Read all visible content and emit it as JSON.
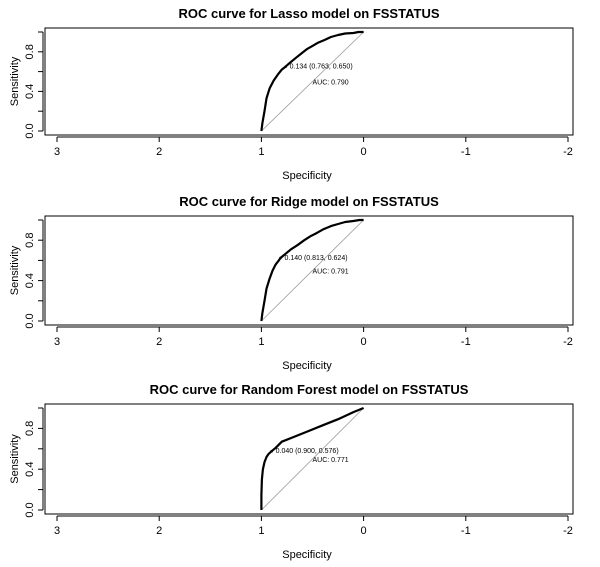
{
  "chart_data": [
    {
      "type": "line",
      "title": "ROC curve for Lasso model on FSSTATUS",
      "xlabel": "Specificity",
      "ylabel": "Sensitivity",
      "xlim": [
        3,
        -2
      ],
      "ylim": [
        0,
        1
      ],
      "x_ticks": [
        3,
        2,
        1,
        0,
        -1,
        -2
      ],
      "x_tick_labels": [
        "3",
        "2",
        "1",
        "0",
        "-1",
        "-2"
      ],
      "y_ticks": [
        0.0,
        0.4,
        0.8
      ],
      "y_tick_labels": [
        "0.0",
        "0.4",
        "0.8"
      ],
      "series": [
        {
          "x": [
            1.0,
            0.99,
            0.97,
            0.95,
            0.92,
            0.88,
            0.84,
            0.8,
            0.763,
            0.72,
            0.66,
            0.6,
            0.55,
            0.5,
            0.45,
            0.38,
            0.32,
            0.25,
            0.18,
            0.1,
            0.05,
            0.0
          ],
          "y": [
            0.0,
            0.08,
            0.2,
            0.33,
            0.43,
            0.51,
            0.57,
            0.62,
            0.65,
            0.69,
            0.74,
            0.79,
            0.83,
            0.86,
            0.89,
            0.92,
            0.95,
            0.97,
            0.985,
            0.99,
            1.0,
            1.0
          ]
        }
      ],
      "reference_line": {
        "x": [
          1,
          0
        ],
        "y": [
          0,
          1
        ]
      },
      "threshold_annotation": {
        "text": "0.134 (0.763, 0.650)",
        "x": 0.763,
        "y": 0.65
      },
      "auc_annotation": {
        "text": "AUC: 0.790"
      }
    },
    {
      "type": "line",
      "title": "ROC curve for Ridge model on FSSTATUS",
      "xlabel": "Specificity",
      "ylabel": "Sensitivity",
      "xlim": [
        3,
        -2
      ],
      "ylim": [
        0,
        1
      ],
      "x_ticks": [
        3,
        2,
        1,
        0,
        -1,
        -2
      ],
      "x_tick_labels": [
        "3",
        "2",
        "1",
        "0",
        "-1",
        "-2"
      ],
      "y_ticks": [
        0.0,
        0.4,
        0.8
      ],
      "y_tick_labels": [
        "0.0",
        "0.4",
        "0.8"
      ],
      "series": [
        {
          "x": [
            1.0,
            0.99,
            0.97,
            0.95,
            0.92,
            0.89,
            0.86,
            0.83,
            0.813,
            0.77,
            0.71,
            0.65,
            0.58,
            0.52,
            0.46,
            0.39,
            0.32,
            0.25,
            0.18,
            0.1,
            0.04,
            0.0
          ],
          "y": [
            0.0,
            0.08,
            0.2,
            0.32,
            0.42,
            0.5,
            0.56,
            0.6,
            0.624,
            0.66,
            0.71,
            0.75,
            0.8,
            0.84,
            0.87,
            0.91,
            0.94,
            0.96,
            0.98,
            0.99,
            1.0,
            1.0
          ]
        }
      ],
      "reference_line": {
        "x": [
          1,
          0
        ],
        "y": [
          0,
          1
        ]
      },
      "threshold_annotation": {
        "text": "0.140 (0.813, 0.624)",
        "x": 0.813,
        "y": 0.624
      },
      "auc_annotation": {
        "text": "AUC: 0.791"
      }
    },
    {
      "type": "line",
      "title": "ROC curve for Random Forest model on FSSTATUS",
      "xlabel": "Specificity",
      "ylabel": "Sensitivity",
      "xlim": [
        3,
        -2
      ],
      "ylim": [
        0,
        1
      ],
      "x_ticks": [
        3,
        2,
        1,
        0,
        -1,
        -2
      ],
      "x_tick_labels": [
        "3",
        "2",
        "1",
        "0",
        "-1",
        "-2"
      ],
      "y_ticks": [
        0.0,
        0.4,
        0.8
      ],
      "y_tick_labels": [
        "0.0",
        "0.4",
        "0.8"
      ],
      "series": [
        {
          "x": [
            1.0,
            1.0,
            0.995,
            0.985,
            0.97,
            0.95,
            0.93,
            0.9,
            0.86,
            0.8,
            0.7,
            0.55,
            0.4,
            0.25,
            0.1,
            0.0
          ],
          "y": [
            0.0,
            0.15,
            0.3,
            0.4,
            0.47,
            0.52,
            0.55,
            0.576,
            0.61,
            0.67,
            0.71,
            0.77,
            0.83,
            0.89,
            0.96,
            1.0
          ]
        }
      ],
      "reference_line": {
        "x": [
          1,
          0
        ],
        "y": [
          0,
          1
        ]
      },
      "threshold_annotation": {
        "text": "0.040 (0.900, 0.576)",
        "x": 0.9,
        "y": 0.576
      },
      "auc_annotation": {
        "text": "AUC: 0.771"
      }
    }
  ]
}
